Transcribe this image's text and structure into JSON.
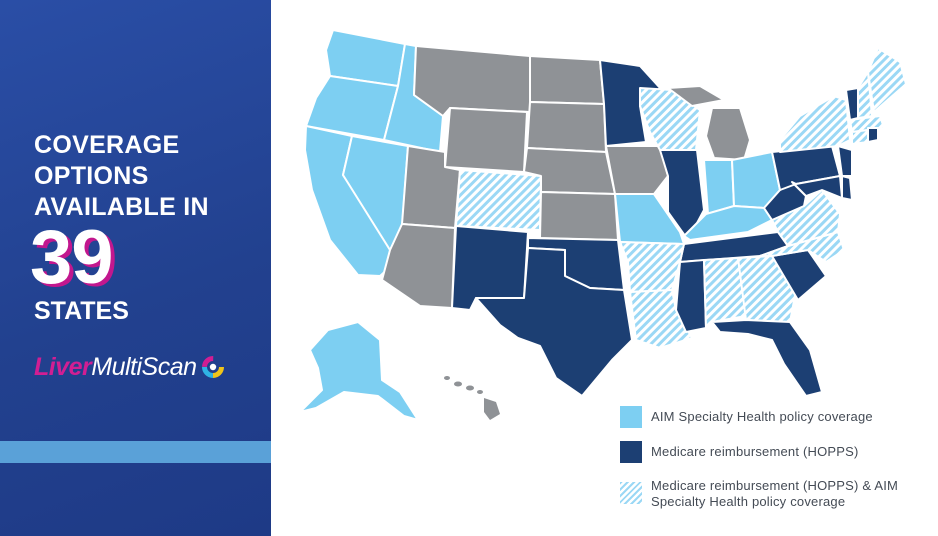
{
  "sidebar": {
    "headline_lines": [
      "COVERAGE",
      "OPTIONS",
      "AVAILABLE IN"
    ],
    "count": "39",
    "count_unit": "STATES",
    "brand_part1": "Liver",
    "brand_part2": "MultiScan"
  },
  "legend": {
    "items": [
      {
        "key": "aim",
        "label_lines": [
          "AIM Specialty Health policy coverage"
        ]
      },
      {
        "key": "hopps",
        "label_lines": [
          "Medicare reimbursement (HOPPS)"
        ]
      },
      {
        "key": "both",
        "label_lines": [
          "Medicare reimbursement (HOPPS) & AIM",
          "Specialty Health policy coverage"
        ]
      }
    ]
  },
  "colors": {
    "aim": "#7dcff2",
    "hopps": "#1c3f73",
    "both_stripe": "#9bd8f5",
    "none": "#8f9296",
    "brand_pink": "#d11e93",
    "sidebar_blue": "#22418f"
  },
  "map_coverage": {
    "aim": [
      "Washington",
      "Oregon",
      "California",
      "Nevada",
      "Idaho",
      "Alaska",
      "Missouri",
      "Indiana",
      "Ohio",
      "Kentucky"
    ],
    "hopps": [
      "New Mexico",
      "Texas",
      "Oklahoma",
      "Minnesota",
      "Illinois",
      "Tennessee",
      "Mississippi",
      "Florida",
      "South Carolina",
      "West Virginia",
      "Pennsylvania",
      "New Jersey",
      "Maryland",
      "Delaware",
      "Vermont",
      "Rhode Island"
    ],
    "hopps_and_aim": [
      "Colorado",
      "Wisconsin",
      "Arkansas",
      "Louisiana",
      "Alabama",
      "Georgia",
      "North Carolina",
      "Virginia",
      "New York",
      "New Hampshire",
      "Maine",
      "Massachusetts",
      "Connecticut"
    ],
    "none": [
      "Montana",
      "Wyoming",
      "Utah",
      "Arizona",
      "North Dakota",
      "South Dakota",
      "Nebraska",
      "Kansas",
      "Iowa",
      "Michigan",
      "Hawaii"
    ]
  }
}
